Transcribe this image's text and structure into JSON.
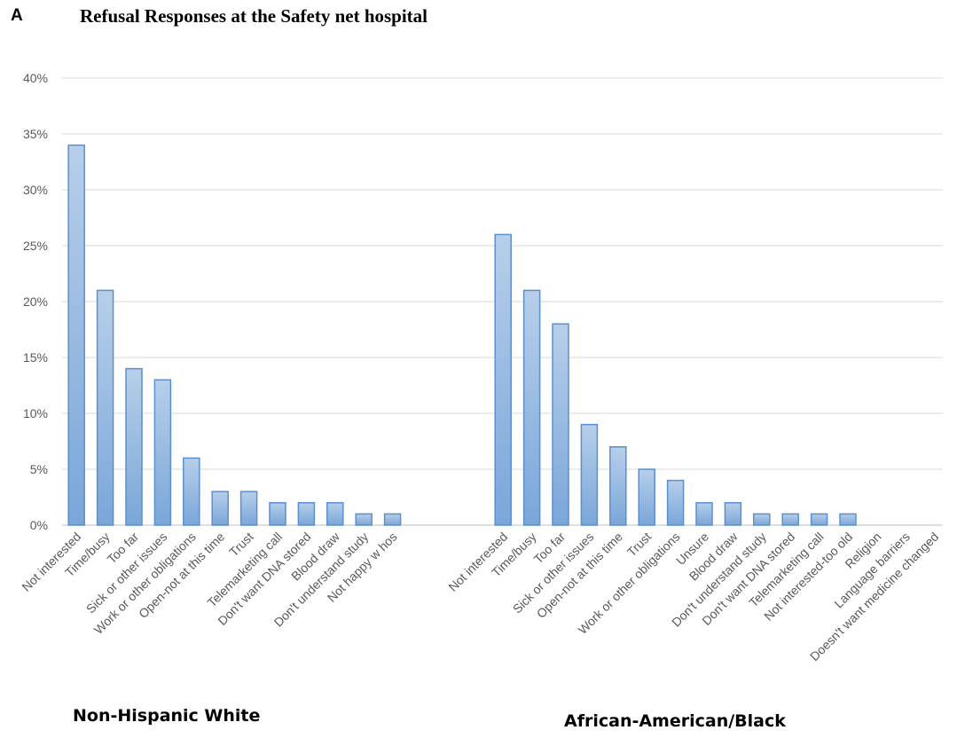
{
  "panel_letter": "A",
  "chart_data": {
    "type": "bar",
    "title": "Refusal Responses at the Safety net hospital",
    "xlabel": "",
    "ylabel": "",
    "ylim": [
      0,
      40
    ],
    "yticks": [
      "0%",
      "5%",
      "10%",
      "15%",
      "20%",
      "25%",
      "30%",
      "35%",
      "40%"
    ],
    "grid": true,
    "colors": {
      "bar_fill_top": "#b7cfea",
      "bar_fill_bottom": "#7aa6d9",
      "bar_stroke": "#5b8fce",
      "grid": "#d9d9d9",
      "axis": "#bfbfbf",
      "tick_text": "#595959"
    },
    "groups": [
      {
        "name": "Non-Hispanic White",
        "categories": [
          "Not interested",
          "Time/busy",
          "Too far",
          "Sick or other issues",
          "Work or other obligations",
          "Open-not at this time",
          "Trust",
          "Telemarketing call",
          "Don't want DNA stored",
          "Blood draw",
          "Don't understand study",
          "Not happy w hos"
        ],
        "values": [
          34,
          21,
          14,
          13,
          6,
          3,
          3,
          2,
          2,
          2,
          1,
          1
        ]
      },
      {
        "name": "African-American/Black",
        "categories": [
          "Not interested",
          "Time/busy",
          "Too far",
          "Sick or other issues",
          "Open-not at this time",
          "Trust",
          "Work or other obligations",
          "Unsure",
          "Blood draw",
          "Don't understand study",
          "Don't want DNA stored",
          "Telemarketing call",
          "Not interested-too old",
          "Religion",
          "Language barriers",
          "Doesn't want medicine changed"
        ],
        "values": [
          26,
          21,
          18,
          9,
          7,
          5,
          4,
          2,
          2,
          1,
          1,
          1,
          1,
          0,
          0,
          0
        ]
      }
    ]
  }
}
